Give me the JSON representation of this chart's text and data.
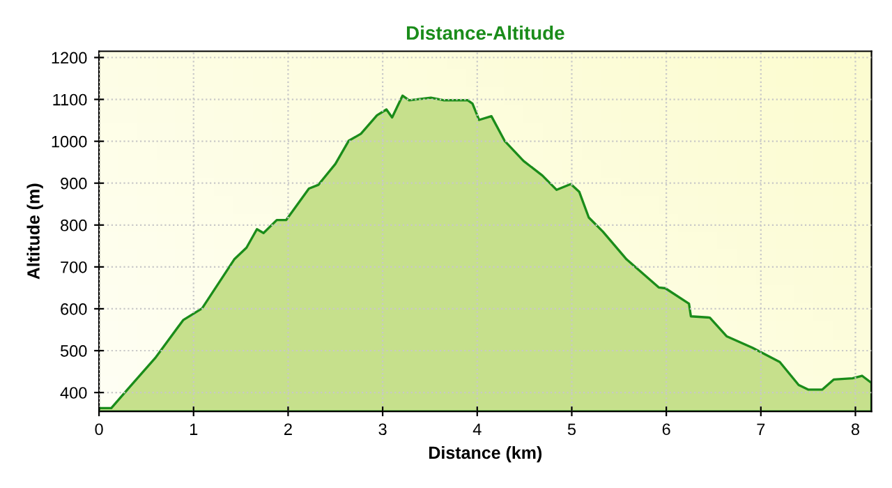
{
  "chart_data": {
    "type": "area",
    "title": "Distance-Altitude",
    "xlabel": "Distance (km)",
    "ylabel": "Altitude (m)",
    "xlim": [
      0,
      8.17
    ],
    "ylim": [
      355,
      1215
    ],
    "xticks": [
      0,
      1,
      2,
      3,
      4,
      5,
      6,
      7,
      8
    ],
    "yticks": [
      400,
      500,
      600,
      700,
      800,
      900,
      1000,
      1100,
      1200
    ],
    "grid": true,
    "series": [
      {
        "color": "#1a8c1a",
        "x": [
          0,
          0.13,
          0.3,
          0.6,
          0.89,
          1.09,
          1.43,
          1.56,
          1.67,
          1.74,
          1.88,
          1.98,
          2.22,
          2.32,
          2.5,
          2.64,
          2.77,
          2.94,
          3.04,
          3.1,
          3.21,
          3.28,
          3.51,
          3.65,
          3.9,
          3.95,
          4.02,
          4.15,
          4.29,
          4.49,
          4.69,
          4.84,
          4.99,
          5.08,
          5.18,
          5.33,
          5.58,
          5.92,
          5.99,
          6.24,
          6.26,
          6.46,
          6.64,
          6.91,
          7.2,
          7.4,
          7.5,
          7.65,
          7.77,
          7.97,
          8.07,
          8.17
        ],
        "values": [
          363,
          363,
          407,
          484,
          573,
          601,
          718,
          746,
          790,
          781,
          812,
          812,
          887,
          896,
          946,
          1001,
          1018,
          1062,
          1076,
          1057,
          1109,
          1098,
          1104,
          1098,
          1098,
          1090,
          1051,
          1060,
          1001,
          953,
          918,
          884,
          898,
          879,
          818,
          784,
          718,
          651,
          649,
          612,
          582,
          579,
          534,
          507,
          473,
          418,
          407,
          407,
          431,
          434,
          440,
          423
        ]
      }
    ]
  }
}
